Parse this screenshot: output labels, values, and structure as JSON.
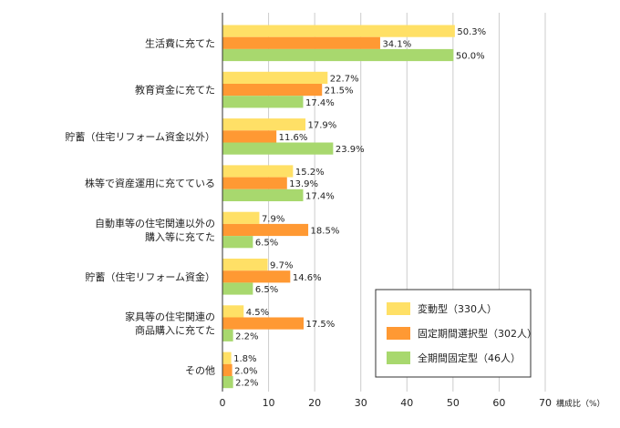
{
  "chart_data": {
    "type": "bar",
    "orientation": "horizontal",
    "categories": [
      [
        "生活費に充てた"
      ],
      [
        "教育資金に充てた"
      ],
      [
        "貯蓄（住宅リフォーム資金以外）"
      ],
      [
        "株等で資産運用に充てている"
      ],
      [
        "自動車等の住宅関連以外の",
        "購入等に充てた"
      ],
      [
        "貯蓄（住宅リフォーム資金）"
      ],
      [
        "家具等の住宅関連の",
        "商品購入に充てた"
      ],
      [
        "その他"
      ]
    ],
    "series": [
      {
        "name": "変動型（330人）",
        "color": "#FFE066",
        "values": [
          50.3,
          22.7,
          17.9,
          15.2,
          7.9,
          9.7,
          4.5,
          1.8
        ]
      },
      {
        "name": "固定期間選択型（302人）",
        "color": "#FF9933",
        "values": [
          34.1,
          21.5,
          11.6,
          13.9,
          18.5,
          14.6,
          17.5,
          2.0
        ]
      },
      {
        "name": "全期間固定型（46人）",
        "color": "#A8D86E",
        "values": [
          50.0,
          17.4,
          23.9,
          17.4,
          6.5,
          6.5,
          2.2,
          2.2
        ]
      }
    ],
    "xlim": [
      0,
      70
    ],
    "xticks": [
      0,
      10,
      20,
      30,
      40,
      50,
      60,
      70
    ],
    "xlabel": "構成比（%）",
    "value_format": "%",
    "legend": "bottom-right",
    "grid": true
  }
}
